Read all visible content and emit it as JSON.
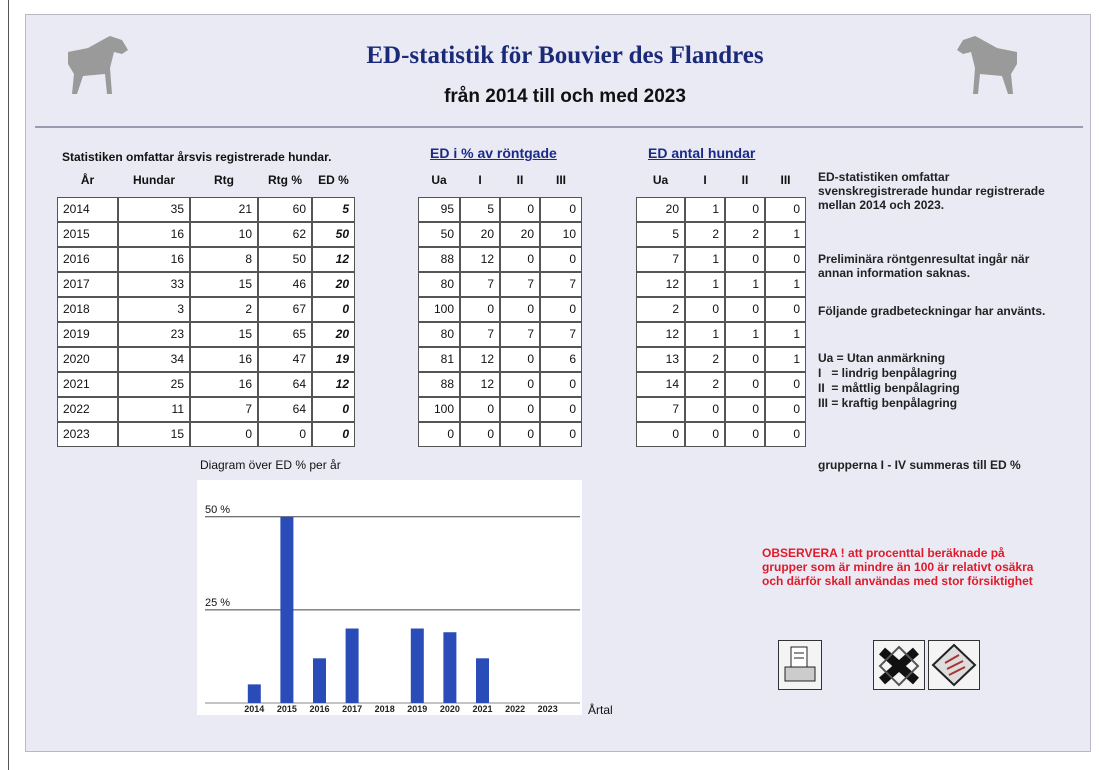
{
  "header": {
    "title": "ED-statistik för Bouvier des Flandres",
    "subtitle": "från 2014 till och med 2023"
  },
  "main_table": {
    "caption": "Statistiken omfattar årsvis registrerade hundar.",
    "columns": [
      "År",
      "Hundar",
      "Rtg",
      "Rtg %",
      "ED %"
    ],
    "rows": [
      [
        2014,
        35,
        21,
        60,
        5
      ],
      [
        2015,
        16,
        10,
        62,
        50
      ],
      [
        2016,
        16,
        8,
        50,
        12
      ],
      [
        2017,
        33,
        15,
        46,
        20
      ],
      [
        2018,
        3,
        2,
        67,
        0
      ],
      [
        2019,
        23,
        15,
        65,
        20
      ],
      [
        2020,
        34,
        16,
        47,
        19
      ],
      [
        2021,
        25,
        16,
        64,
        12
      ],
      [
        2022,
        11,
        7,
        64,
        0
      ],
      [
        2023,
        15,
        0,
        0,
        0
      ]
    ]
  },
  "percent_table": {
    "caption": "ED i %  av röntgade",
    "columns": [
      "Ua",
      "I",
      "II",
      "III"
    ],
    "rows": [
      [
        95,
        5,
        0,
        0
      ],
      [
        50,
        20,
        20,
        10
      ],
      [
        88,
        12,
        0,
        0
      ],
      [
        80,
        7,
        7,
        7
      ],
      [
        100,
        0,
        0,
        0
      ],
      [
        80,
        7,
        7,
        7
      ],
      [
        81,
        12,
        0,
        6
      ],
      [
        88,
        12,
        0,
        0
      ],
      [
        100,
        0,
        0,
        0
      ],
      [
        0,
        0,
        0,
        0
      ]
    ]
  },
  "count_table": {
    "caption": "ED antal hundar",
    "columns": [
      "Ua",
      "I",
      "II",
      "III"
    ],
    "rows": [
      [
        20,
        1,
        0,
        0
      ],
      [
        5,
        2,
        2,
        1
      ],
      [
        7,
        1,
        0,
        0
      ],
      [
        12,
        1,
        1,
        1
      ],
      [
        2,
        0,
        0,
        0
      ],
      [
        12,
        1,
        1,
        1
      ],
      [
        13,
        2,
        0,
        1
      ],
      [
        14,
        2,
        0,
        0
      ],
      [
        7,
        0,
        0,
        0
      ],
      [
        0,
        0,
        0,
        0
      ]
    ]
  },
  "notes": [
    "ED-statistiken omfattar svenskregistrerade hundar registrerade mellan 2014 och 2023.",
    "Preliminära röntgenresultat ingår när annan information saknas.",
    "Följande gradbeteckningar har använts."
  ],
  "legend": [
    "Ua = Utan anmärkning",
    "I   = lindrig benpålagring",
    "II  = måttlig benpålagring",
    "III = kraftig benpålagring"
  ],
  "summary": "grupperna I - IV summeras till ED %",
  "warning": "OBSERVERA ! att procenttal beräknade på grupper som är mindre än 100 är relativt osäkra och därför skall användas med stor försiktighet",
  "chart_data": {
    "type": "bar",
    "title": "Diagram över ED % per år",
    "categories": [
      "2014",
      "2015",
      "2016",
      "2017",
      "2018",
      "2019",
      "2020",
      "2021",
      "2022",
      "2023"
    ],
    "values": [
      5,
      50,
      12,
      20,
      0,
      20,
      19,
      12,
      0,
      0
    ],
    "color": "#2a4cb8",
    "ylim": [
      0,
      58
    ],
    "yticks": [
      {
        "value": 25,
        "label": "25 %"
      },
      {
        "value": 50,
        "label": "50 %"
      }
    ],
    "xlabel": "Årtal",
    "grid": true
  }
}
